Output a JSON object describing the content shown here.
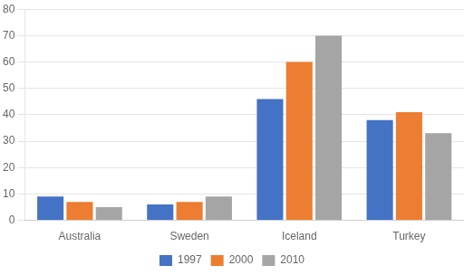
{
  "chart_data": {
    "type": "bar",
    "categories": [
      "Australia",
      "Sweden",
      "Iceland",
      "Turkey"
    ],
    "series": [
      {
        "name": "1997",
        "color": "#4472C4",
        "values": [
          9,
          6,
          46,
          38
        ]
      },
      {
        "name": "2000",
        "color": "#ED7D31",
        "values": [
          7,
          7,
          60,
          41
        ]
      },
      {
        "name": "2010",
        "color": "#A5A5A5",
        "values": [
          5,
          9,
          70,
          33
        ]
      }
    ],
    "ylim": [
      0,
      80
    ],
    "yticks": [
      0,
      10,
      20,
      30,
      40,
      50,
      60,
      70,
      80
    ],
    "grid": "y",
    "legend": "bottom"
  }
}
